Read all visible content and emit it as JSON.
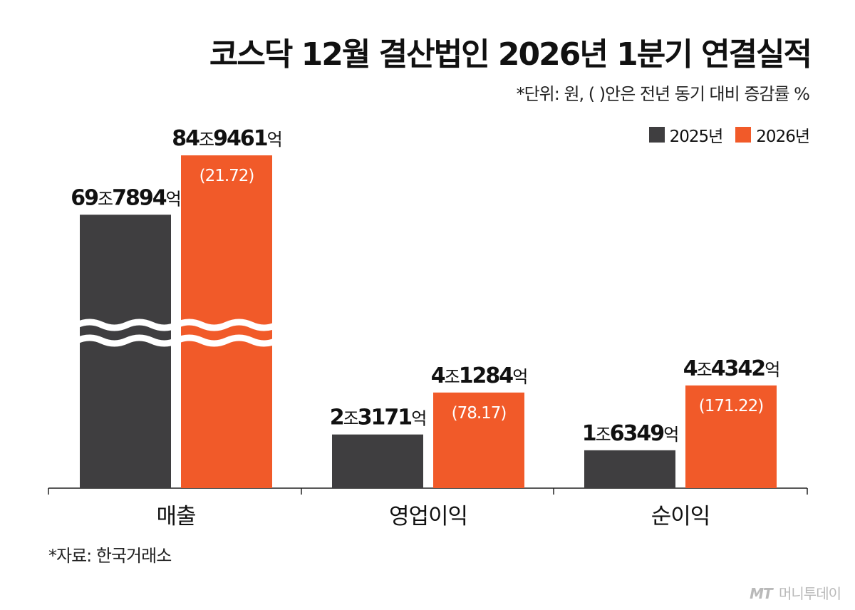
{
  "title": "코스닥 12월 결산법인 2026년 1분기 연결실적",
  "unit_note": "*단위: 원, (   )안은 전년 동기 대비 증감률 %",
  "source": "*자료: 한국거래소",
  "brand": {
    "mark": "MT",
    "name": "머니투데이"
  },
  "colors": {
    "2025": "#3f3e40",
    "2026": "#f15a29"
  },
  "chart_data": {
    "type": "bar",
    "categories": [
      "매출",
      "영업이익",
      "순이익"
    ],
    "series": [
      {
        "name": "2025년",
        "values": [
          697894,
          23171,
          16349
        ],
        "labels": [
          {
            "num1": "69",
            "u1": "조",
            "num2": "7894",
            "u2": "억"
          },
          {
            "num1": "2",
            "u1": "조",
            "num2": "3171",
            "u2": "억"
          },
          {
            "num1": "1",
            "u1": "조",
            "num2": "6349",
            "u2": "억"
          }
        ]
      },
      {
        "name": "2026년",
        "values": [
          849461,
          41284,
          44342
        ],
        "labels": [
          {
            "num1": "84",
            "u1": "조",
            "num2": "9461",
            "u2": "억"
          },
          {
            "num1": "4",
            "u1": "조",
            "num2": "1284",
            "u2": "억"
          },
          {
            "num1": "4",
            "u1": "조",
            "num2": "4342",
            "u2": "억"
          }
        ],
        "changes": [
          "(21.72)",
          "(78.17)",
          "(171.22)"
        ]
      }
    ],
    "axis_break_category": "매출",
    "grid": false,
    "legend": "top-right"
  }
}
